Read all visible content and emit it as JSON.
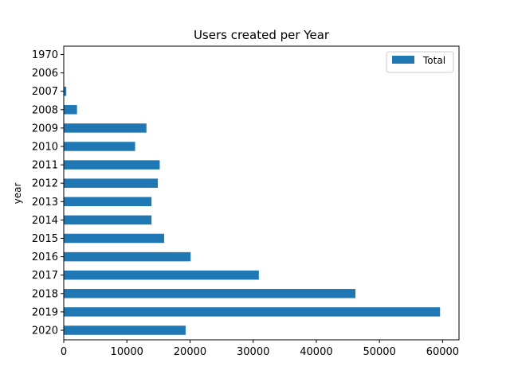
{
  "chart_data": {
    "type": "bar",
    "orientation": "horizontal",
    "title": "Users created per Year",
    "xlabel": "",
    "ylabel": "year",
    "categories": [
      "2020",
      "2019",
      "2018",
      "2017",
      "2016",
      "2015",
      "2014",
      "2013",
      "2012",
      "2011",
      "2010",
      "2009",
      "2008",
      "2007",
      "2006",
      "1970"
    ],
    "series": [
      {
        "name": "Total",
        "color": "#1f77b4",
        "values": [
          19300,
          59600,
          46200,
          30900,
          20100,
          15900,
          13900,
          13900,
          14900,
          15200,
          11300,
          13100,
          2100,
          400,
          20,
          10
        ]
      }
    ],
    "xlim": [
      0,
      62600
    ],
    "xticks": [
      0,
      10000,
      20000,
      30000,
      40000,
      50000,
      60000
    ],
    "xtick_labels": [
      "0",
      "10000",
      "20000",
      "30000",
      "40000",
      "50000",
      "60000"
    ],
    "grid": false,
    "legend_position": "top-right"
  }
}
